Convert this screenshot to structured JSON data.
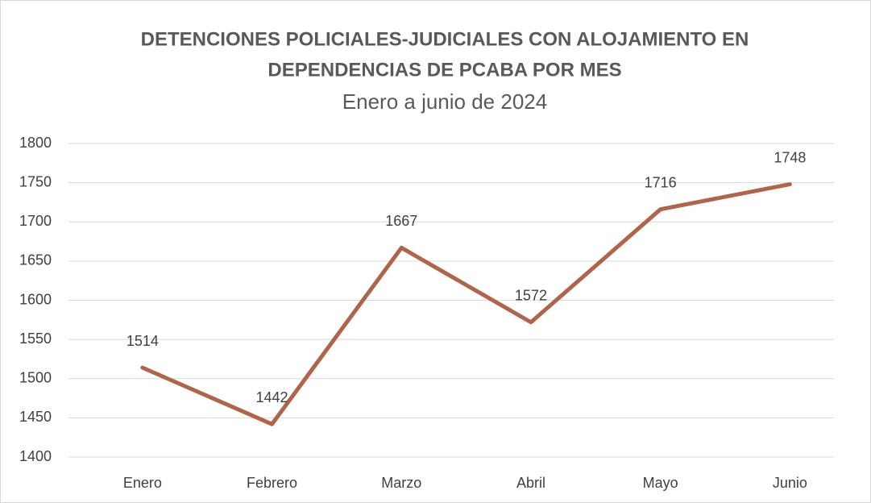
{
  "chart_data": {
    "type": "line",
    "title": [
      "DETENCIONES POLICIALES-JUDICIALES CON ALOJAMIENTO EN",
      "DEPENDENCIAS DE PCABA POR MES"
    ],
    "subtitle": "Enero a junio de 2024",
    "categories": [
      "Enero",
      "Febrero",
      "Marzo",
      "Abril",
      "Mayo",
      "Junio"
    ],
    "series": [
      {
        "name": "Detenciones",
        "color": "#b0654a",
        "values": [
          1514,
          1442,
          1667,
          1572,
          1716,
          1748
        ]
      }
    ],
    "ylim": [
      1400,
      1800
    ],
    "yticks": [
      1400,
      1450,
      1500,
      1550,
      1600,
      1650,
      1700,
      1750,
      1800
    ],
    "grid": true,
    "data_labels": true
  }
}
